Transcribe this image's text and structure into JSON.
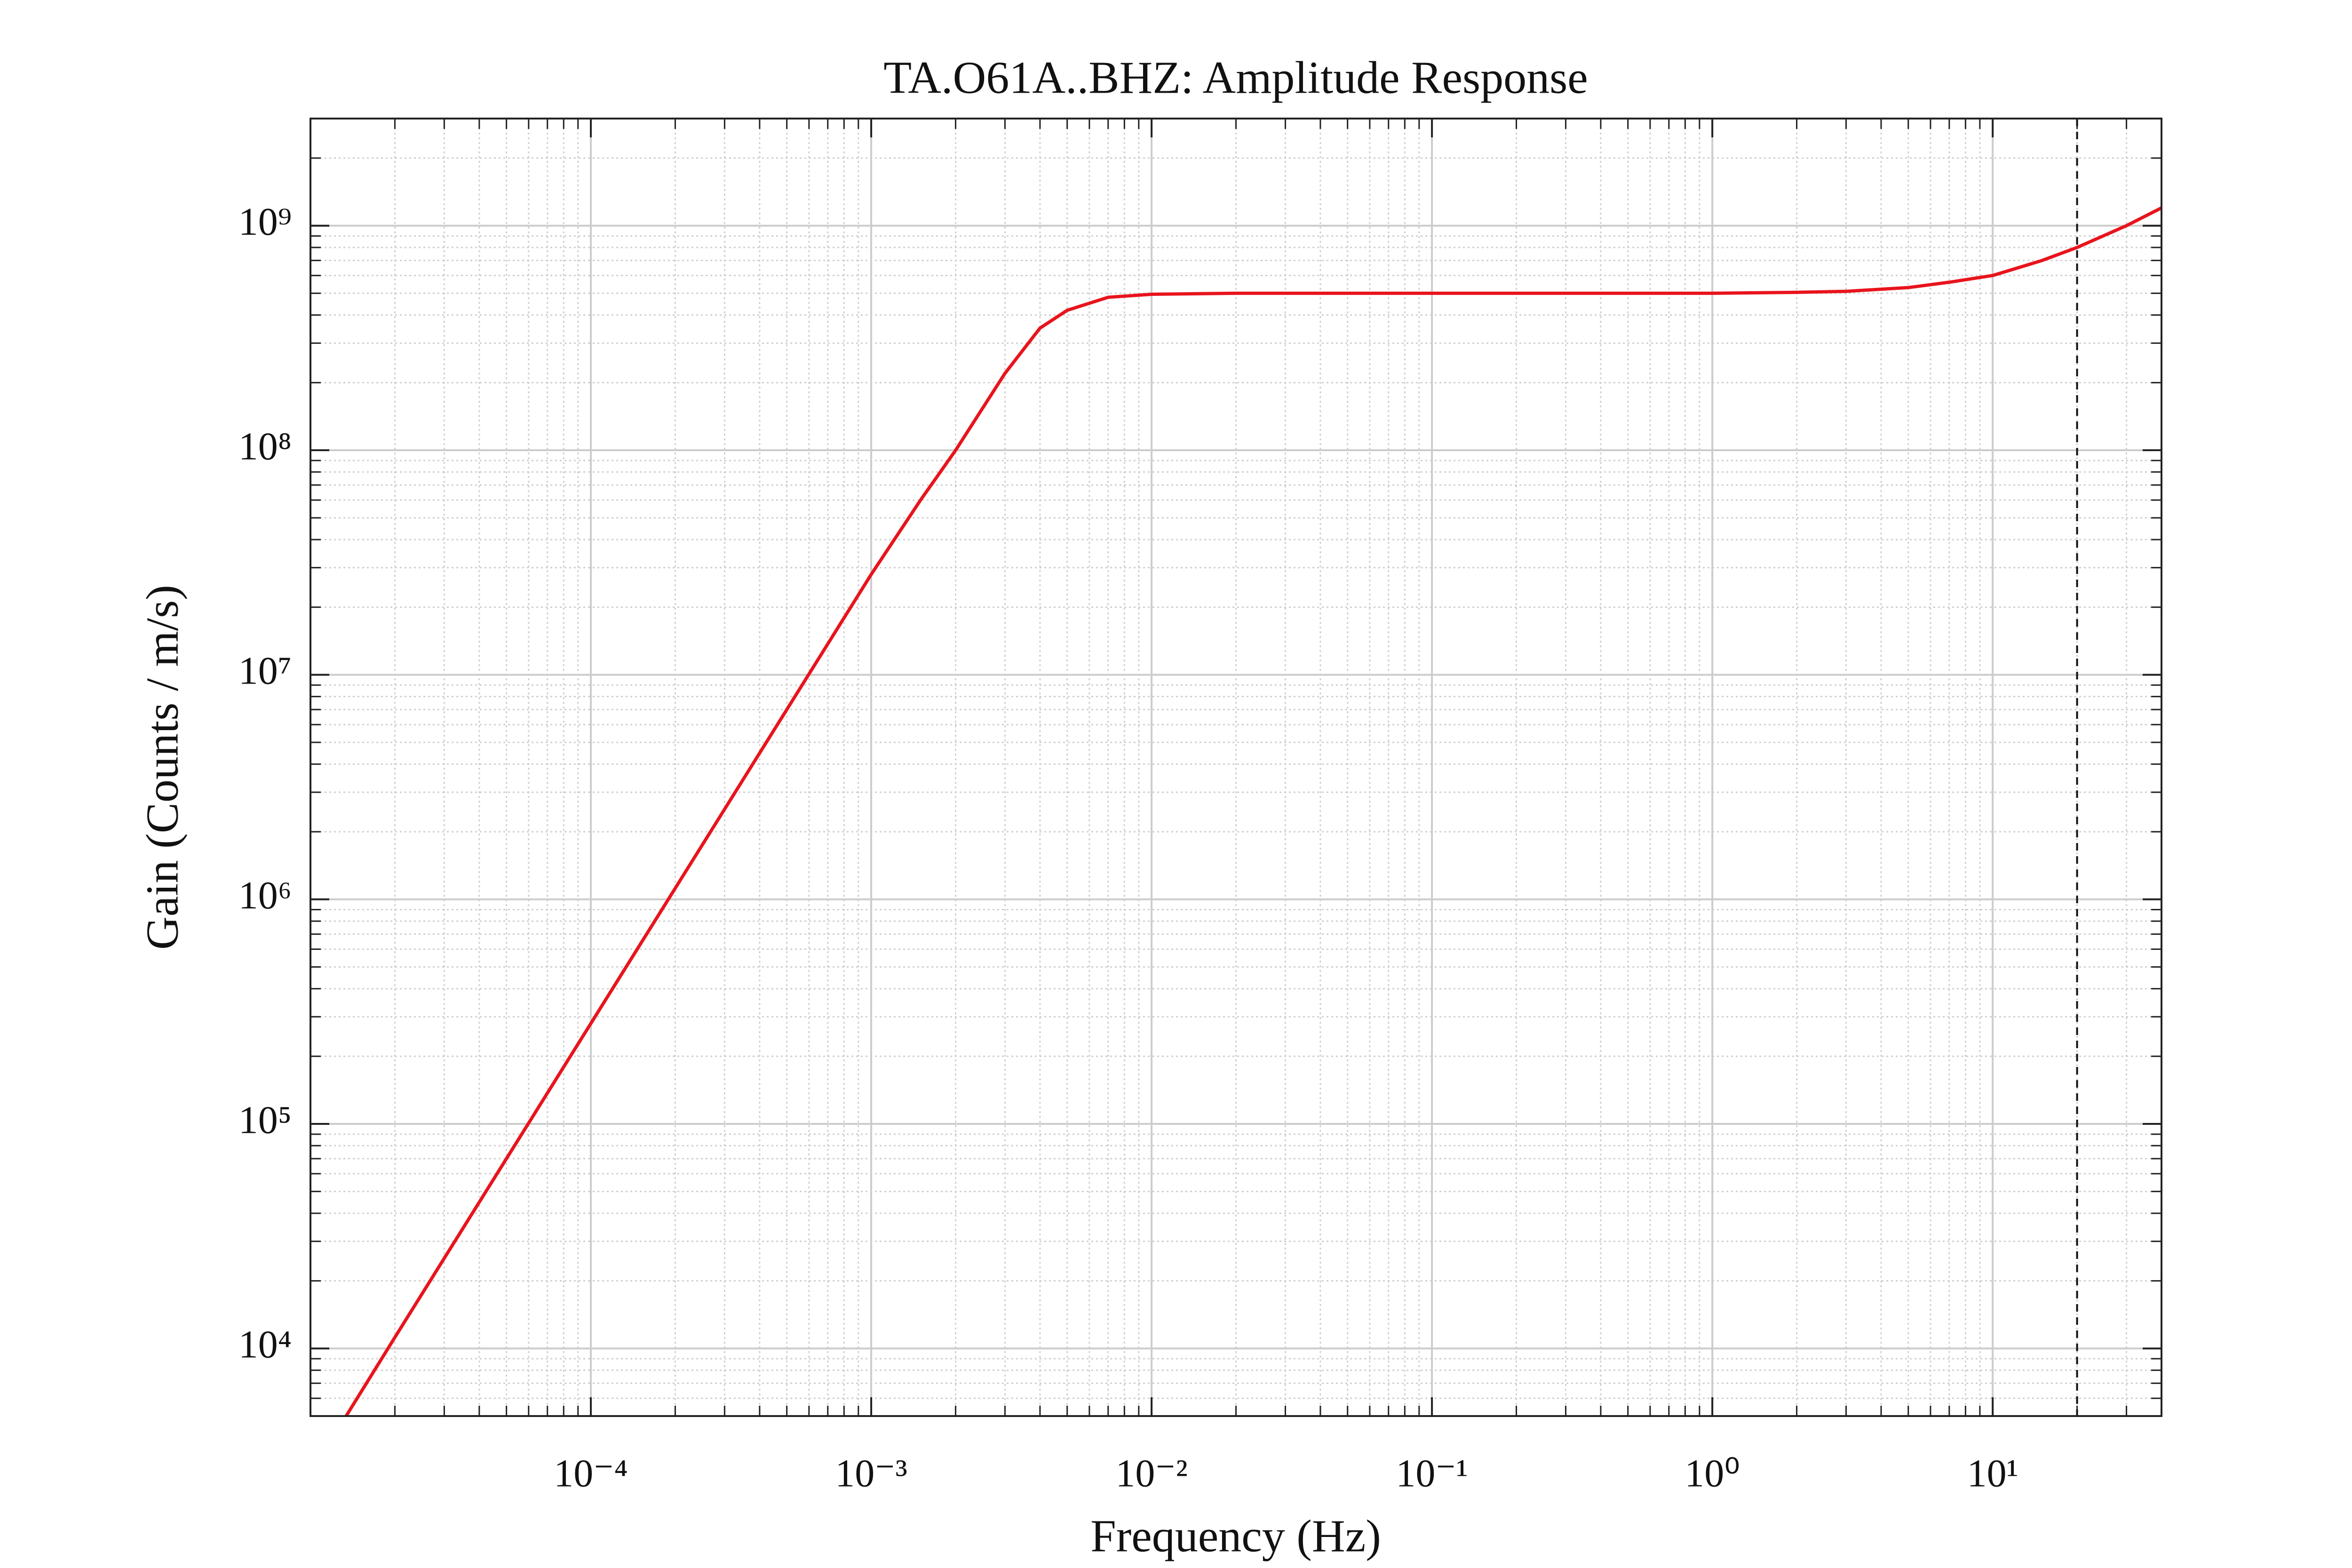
{
  "chart_data": {
    "type": "line",
    "title": "TA.O61A..BHZ: Amplitude Response",
    "xlabel": "Frequency (Hz)",
    "ylabel": "Gain (Counts / m/s)",
    "xscale": "log",
    "yscale": "log",
    "grid": true,
    "minor_grid": true,
    "xlim": [
      1e-05,
      40
    ],
    "ylim": [
      5000,
      3000000000
    ],
    "xticks": [
      {
        "value": 0.0001,
        "label": "10⁻⁴"
      },
      {
        "value": 0.001,
        "label": "10⁻³"
      },
      {
        "value": 0.01,
        "label": "10⁻²"
      },
      {
        "value": 0.1,
        "label": "10⁻¹"
      },
      {
        "value": 1,
        "label": "10⁰"
      },
      {
        "value": 10,
        "label": "10¹"
      }
    ],
    "yticks": [
      {
        "value": 10000,
        "label": "10⁴"
      },
      {
        "value": 100000,
        "label": "10⁵"
      },
      {
        "value": 1000000,
        "label": "10⁶"
      },
      {
        "value": 10000000,
        "label": "10⁷"
      },
      {
        "value": 100000000,
        "label": "10⁸"
      },
      {
        "value": 1000000000,
        "label": "10⁹"
      }
    ],
    "x": [
      1.3e-05,
      2e-05,
      5e-05,
      0.0001,
      0.0002,
      0.0005,
      0.001,
      0.0015,
      0.002,
      0.003,
      0.004,
      0.005,
      0.007,
      0.01,
      0.02,
      0.1,
      1,
      2,
      3,
      5,
      7,
      10,
      15,
      20,
      30,
      40
    ],
    "series": [
      {
        "color": "#e8141c",
        "values": [
          4700,
          11200,
          70000,
          280000,
          1120000,
          7000000,
          28000000,
          60000000,
          100000000,
          220000000,
          350000000,
          420000000,
          480000000,
          495000000,
          500000000,
          500000000,
          500000000,
          505000000,
          510000000,
          530000000,
          560000000,
          600000000,
          700000000,
          800000000,
          1000000000,
          1200000000
        ]
      }
    ],
    "vline": 20
  }
}
